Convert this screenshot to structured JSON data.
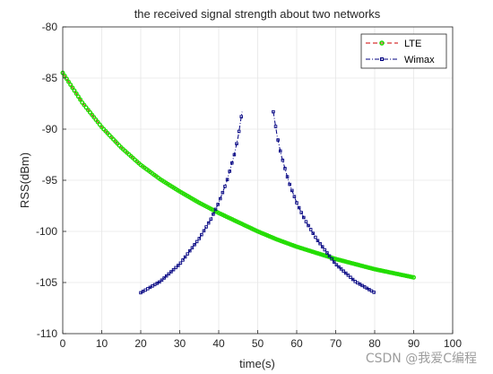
{
  "chart_data": {
    "type": "line",
    "title": "the received signal strength about two networks",
    "xlabel": "time(s)",
    "ylabel": "RSS(dBm)",
    "xlim": [
      0,
      100
    ],
    "ylim": [
      -110,
      -80
    ],
    "xticks": [
      "0",
      "10",
      "20",
      "30",
      "40",
      "50",
      "60",
      "70",
      "80",
      "90",
      "100"
    ],
    "yticks": [
      "-80",
      "-85",
      "-90",
      "-95",
      "-100",
      "-105",
      "-110"
    ],
    "grid": true,
    "legend_position": "top-right",
    "series": [
      {
        "name": "LTE",
        "color": "#22dd00",
        "line_color": "#cc0000",
        "marker": "circle",
        "x": [
          0,
          5,
          10,
          15,
          20,
          25,
          30,
          35,
          40,
          45,
          50,
          55,
          60,
          65,
          70,
          75,
          80,
          85,
          90
        ],
        "y": [
          -84.5,
          -87.4,
          -89.8,
          -91.8,
          -93.5,
          -94.9,
          -96.1,
          -97.2,
          -98.2,
          -99.1,
          -100.0,
          -100.8,
          -101.5,
          -102.1,
          -102.7,
          -103.2,
          -103.7,
          -104.1,
          -104.5
        ]
      },
      {
        "name": "Wimax",
        "color": "#000080",
        "line_color": "#000080",
        "marker": "square",
        "x": [
          20,
          25,
          30,
          35,
          38,
          40,
          42,
          44,
          45,
          46,
          54,
          55,
          56,
          58,
          60,
          62,
          65,
          70,
          75,
          80
        ],
        "y": [
          -106.0,
          -104.9,
          -103.2,
          -100.7,
          -98.8,
          -97.2,
          -95.2,
          -92.5,
          -90.7,
          -88.3,
          -88.3,
          -90.7,
          -92.5,
          -95.2,
          -97.2,
          -98.8,
          -100.7,
          -103.2,
          -104.9,
          -106.0
        ]
      }
    ]
  },
  "watermark": "CSDN @我爱C编程"
}
